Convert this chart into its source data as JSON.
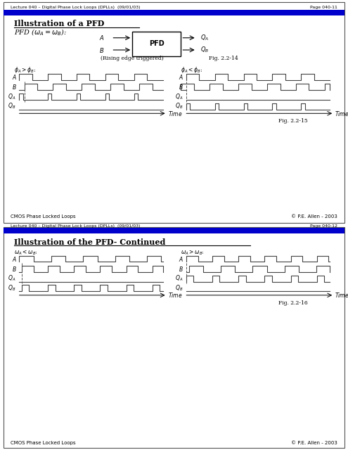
{
  "page1_header": "Lecture 040 – Digital Phase Lock Loops (DPLLs)  (09/01/03)",
  "page1_pagenum": "Page 040-11",
  "page2_header": "Lecture 040 – Digital Phase Lock Loops (DPLLs)  (09/01/03)",
  "page2_pagenum": "Page 040-12",
  "page1_title": "Illustration of a PFD",
  "page2_title": "Illustration of the PFD- Continued",
  "fig1_caption": "Fig. 2.2-14",
  "fig2_caption": "Fig. 2.2-15",
  "fig3_caption": "Fig. 2.2-16",
  "footer_left": "CMOS Phase Locked Loops",
  "footer_right": "© P.E. Allen - 2003",
  "blue_bar_color": "#0000CC",
  "border_color": "#555555",
  "bg_color": "#ffffff",
  "signal_color": "#444444",
  "dashed_color": "#555555"
}
